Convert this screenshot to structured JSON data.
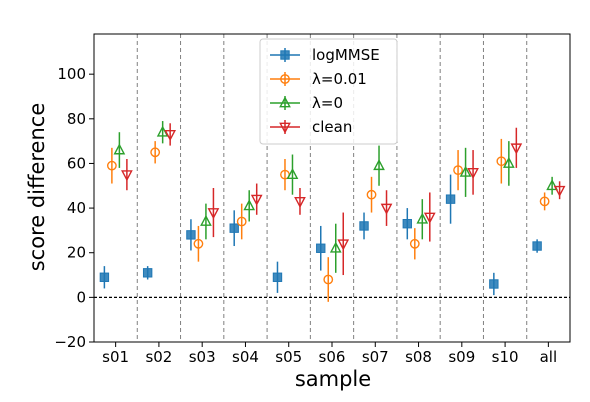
{
  "chart_data": {
    "type": "scatter",
    "xlabel": "sample",
    "ylabel": "score difference",
    "categories": [
      "s01",
      "s02",
      "s03",
      "s04",
      "s05",
      "s06",
      "s07",
      "s08",
      "s09",
      "s10",
      "all"
    ],
    "ylim": [
      -20,
      118
    ],
    "yticks": [
      -20,
      0,
      20,
      40,
      60,
      80,
      100
    ],
    "grid": false,
    "legend_position": "top-center",
    "reference_line": 0,
    "series": [
      {
        "name": "logMMSE",
        "color": "#1f77b4",
        "marker": "square",
        "values": [
          9,
          11,
          28,
          31,
          9,
          22,
          32,
          33,
          44,
          6,
          23
        ],
        "errors": [
          5,
          3,
          7,
          8,
          7,
          10,
          6,
          7,
          11,
          5,
          3
        ]
      },
      {
        "name": "λ=0.01",
        "color": "#ff7f0e",
        "marker": "circle",
        "values": [
          59,
          65,
          24,
          34,
          55,
          8,
          46,
          24,
          57,
          61,
          43
        ],
        "errors": [
          8,
          5,
          8,
          8,
          7,
          10,
          8,
          7,
          9,
          10,
          4
        ]
      },
      {
        "name": "λ=0",
        "color": "#2ca02c",
        "marker": "triangle-up",
        "values": [
          66,
          74,
          34,
          41,
          55,
          22,
          59,
          35,
          56,
          60,
          50
        ],
        "errors": [
          8,
          5,
          8,
          7,
          9,
          11,
          9,
          9,
          11,
          10,
          4
        ]
      },
      {
        "name": "clean",
        "color": "#d62728",
        "marker": "triangle-down",
        "values": [
          55,
          73,
          38,
          44,
          43,
          24,
          40,
          36,
          56,
          67,
          48
        ],
        "errors": [
          7,
          5,
          11,
          7,
          6,
          14,
          8,
          11,
          10,
          9,
          4
        ]
      }
    ]
  }
}
